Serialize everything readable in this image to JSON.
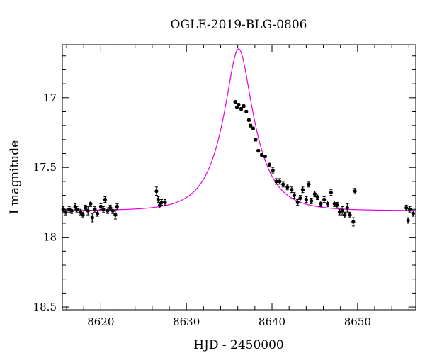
{
  "chart_data": {
    "type": "scatter",
    "title": "OGLE-2019-BLG-0806",
    "xlabel": "HJD - 2450000",
    "ylabel": "I magnitude",
    "xlim": [
      8615.5,
      8656.8
    ],
    "ylim": [
      18.52,
      16.62
    ],
    "y_inverted": true,
    "grid": false,
    "x_ticks": [
      8620,
      8630,
      8640,
      8650
    ],
    "x_tick_labels": [
      "8620",
      "8630",
      "8640",
      "8650"
    ],
    "y_ticks": [
      17,
      17.5,
      18,
      18.5
    ],
    "y_tick_labels": [
      "17",
      "17.5",
      "18",
      "18.5"
    ],
    "y_minor_step": 0.1,
    "x_minor_step": 2,
    "colors": {
      "model": "#e600e6",
      "points": "#000000"
    },
    "model": {
      "name": "",
      "t0": 8636.1,
      "u0": 0.36,
      "tE": 3.6,
      "I_base": 17.81
    },
    "series": [
      {
        "x": [
          8615.6,
          8615.9,
          8616.3,
          8616.6,
          8617.0,
          8617.2,
          8617.6,
          8617.9,
          8618.2,
          8618.5,
          8618.8,
          8619.0,
          8619.3,
          8619.6,
          8620.0,
          8620.3,
          8620.5,
          8620.8,
          8621.1,
          8621.4,
          8621.7,
          8621.9,
          8626.5,
          8626.7,
          8626.9,
          8627.1,
          8627.5,
          8635.7,
          8635.9,
          8636.1,
          8636.4,
          8636.7,
          8637.0,
          8637.3,
          8637.5,
          8637.8,
          8638.1,
          8638.4,
          8638.8,
          8639.2,
          8639.7,
          8640.1,
          8640.5,
          8640.9,
          8641.3,
          8641.8,
          8642.3,
          8642.6,
          8643.0,
          8643.3,
          8643.6,
          8644.0,
          8644.3,
          8644.6,
          8645.0,
          8645.3,
          8645.7,
          8646.1,
          8646.5,
          8646.9,
          8647.3,
          8647.6,
          8647.9,
          8648.2,
          8648.5,
          8648.8,
          8649.1,
          8649.5,
          8649.7,
          8655.7,
          8655.9,
          8656.1,
          8656.5
        ],
        "y": [
          17.8,
          17.82,
          17.8,
          17.81,
          17.78,
          17.8,
          17.82,
          17.84,
          17.79,
          17.81,
          17.76,
          17.86,
          17.8,
          17.83,
          17.78,
          17.8,
          17.73,
          17.81,
          17.79,
          17.81,
          17.84,
          17.78,
          17.67,
          17.73,
          17.77,
          17.75,
          17.75,
          17.03,
          17.07,
          17.05,
          17.08,
          17.06,
          17.1,
          17.16,
          17.2,
          17.22,
          17.3,
          17.38,
          17.41,
          17.42,
          17.48,
          17.52,
          17.6,
          17.6,
          17.62,
          17.64,
          17.66,
          17.7,
          17.75,
          17.72,
          17.66,
          17.73,
          17.62,
          17.74,
          17.69,
          17.71,
          17.76,
          17.73,
          17.76,
          17.68,
          17.76,
          17.77,
          17.82,
          17.81,
          17.84,
          17.79,
          17.84,
          17.89,
          17.67,
          17.79,
          17.88,
          17.8,
          17.83
        ],
        "err": [
          0.02,
          0.02,
          0.02,
          0.02,
          0.02,
          0.02,
          0.02,
          0.02,
          0.02,
          0.03,
          0.02,
          0.03,
          0.02,
          0.02,
          0.02,
          0.02,
          0.02,
          0.02,
          0.02,
          0.02,
          0.03,
          0.02,
          0.03,
          0.02,
          0.02,
          0.02,
          0.02,
          0.01,
          0.01,
          0.01,
          0.01,
          0.01,
          0.01,
          0.01,
          0.01,
          0.01,
          0.01,
          0.01,
          0.01,
          0.01,
          0.01,
          0.02,
          0.02,
          0.02,
          0.02,
          0.02,
          0.02,
          0.02,
          0.02,
          0.02,
          0.02,
          0.02,
          0.02,
          0.02,
          0.02,
          0.02,
          0.02,
          0.02,
          0.02,
          0.02,
          0.02,
          0.02,
          0.02,
          0.03,
          0.02,
          0.03,
          0.02,
          0.03,
          0.02,
          0.02,
          0.02,
          0.02,
          0.02
        ]
      }
    ]
  }
}
